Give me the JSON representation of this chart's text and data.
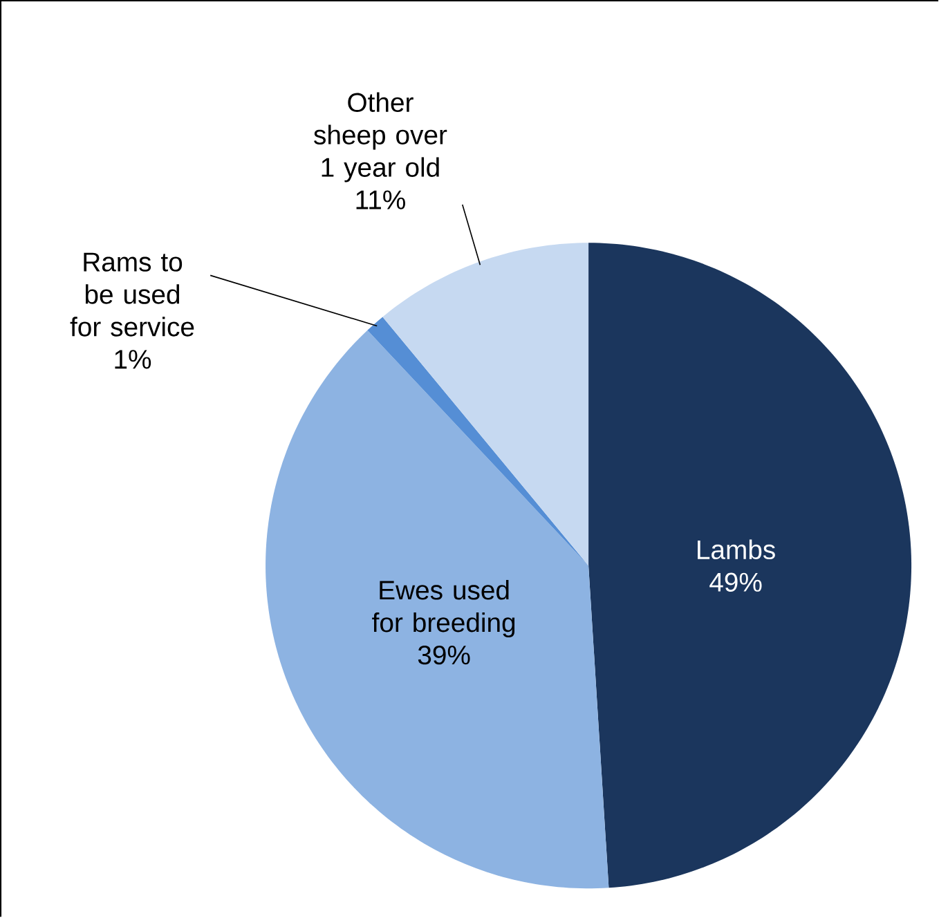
{
  "chart_data": {
    "type": "pie",
    "categories": [
      "Lambs",
      "Ewes used for breeding",
      "Rams to be used for service",
      "Other sheep over 1 year old"
    ],
    "values": [
      49,
      39,
      1,
      11
    ],
    "colors": [
      "#1b365d",
      "#8db3e2",
      "#558ed5",
      "#c6d9f1"
    ],
    "value_labels": [
      "49%",
      "39%",
      "1%",
      "11%"
    ]
  }
}
